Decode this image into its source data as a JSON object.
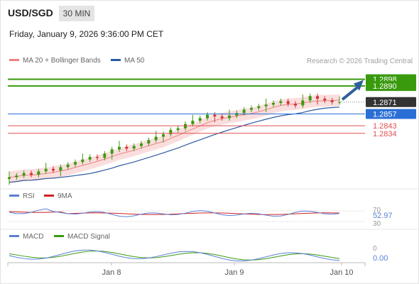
{
  "header": {
    "pair": "USD/SGD",
    "timeframe": "30 MIN",
    "datetime": "Friday, January 9, 2026 9:36:00 PM CET"
  },
  "legend": {
    "ma20": "MA 20 + Bollinger Bands",
    "ma50": "MA 50",
    "rsi": "RSI",
    "rsi_ma": "9MA",
    "macd": "MACD",
    "macd_signal": "MACD Signal"
  },
  "credit": "Research © 2026 Trading Central",
  "colors": {
    "green_level": "#3a9a0e",
    "blue_level": "#2a6fd6",
    "red_level": "#e05050",
    "current_label": "#333333",
    "candle_up": "#3a9a0e",
    "candle_down": "#d03030",
    "band_fill": "#f8d0d0",
    "ma20": "#f08080",
    "ma50": "#2c5aa0",
    "arrow": "#2e5e9e",
    "rsi_line": "#5b7fd6",
    "rsi_ma_line": "#d02020",
    "macd_line": "#5b7fd6",
    "macd_signal_line": "#3a9a0e"
  },
  "chart_data": [
    {
      "type": "candlestick",
      "title": "USD/SGD 30 MIN",
      "x_ticks": [
        "Jan 8",
        "Jan 9",
        "Jan 10"
      ],
      "ylim": [
        1.2775,
        1.2912
      ],
      "levels": [
        {
          "value": 1.2898,
          "label": "1.2898",
          "style": "resistance",
          "color": "#3a9a0e"
        },
        {
          "value": 1.289,
          "label": "1.2890",
          "style": "resistance",
          "color": "#3a9a0e"
        },
        {
          "value": 1.2871,
          "label": "1.2871",
          "style": "current",
          "color": "#333333"
        },
        {
          "value": 1.2857,
          "label": "1.2857",
          "style": "pivot",
          "color": "#2a6fd6"
        },
        {
          "value": 1.2843,
          "label": "1.2843",
          "style": "support",
          "color": "#e05050"
        },
        {
          "value": 1.2834,
          "label": "1.2834",
          "style": "support",
          "color": "#e05050"
        }
      ],
      "approx_close_path": [
        1.2782,
        1.2784,
        1.2787,
        1.2785,
        1.2789,
        1.2792,
        1.279,
        1.2794,
        1.2797,
        1.28,
        1.2803,
        1.2806,
        1.2805,
        1.281,
        1.2815,
        1.2818,
        1.2816,
        1.2819,
        1.2822,
        1.2826,
        1.283,
        1.2833,
        1.2838,
        1.284,
        1.2845,
        1.2849,
        1.2852,
        1.2856,
        1.2854,
        1.2852,
        1.2855,
        1.2858,
        1.2862,
        1.2864,
        1.2866,
        1.2868,
        1.287,
        1.2872,
        1.2869,
        1.2867,
        1.2873,
        1.2878,
        1.2875,
        1.2873,
        1.2871,
        1.2871
      ],
      "projection_target": 1.2898
    },
    {
      "type": "line",
      "title": "RSI",
      "series": [
        {
          "name": "RSI"
        },
        {
          "name": "9MA"
        }
      ],
      "y_ticks": [
        70,
        30
      ],
      "last_value": "52.97"
    },
    {
      "type": "line",
      "title": "MACD",
      "series": [
        {
          "name": "MACD"
        },
        {
          "name": "MACD Signal"
        }
      ],
      "y_ticks": [
        0
      ],
      "last_value": "0.00"
    }
  ]
}
